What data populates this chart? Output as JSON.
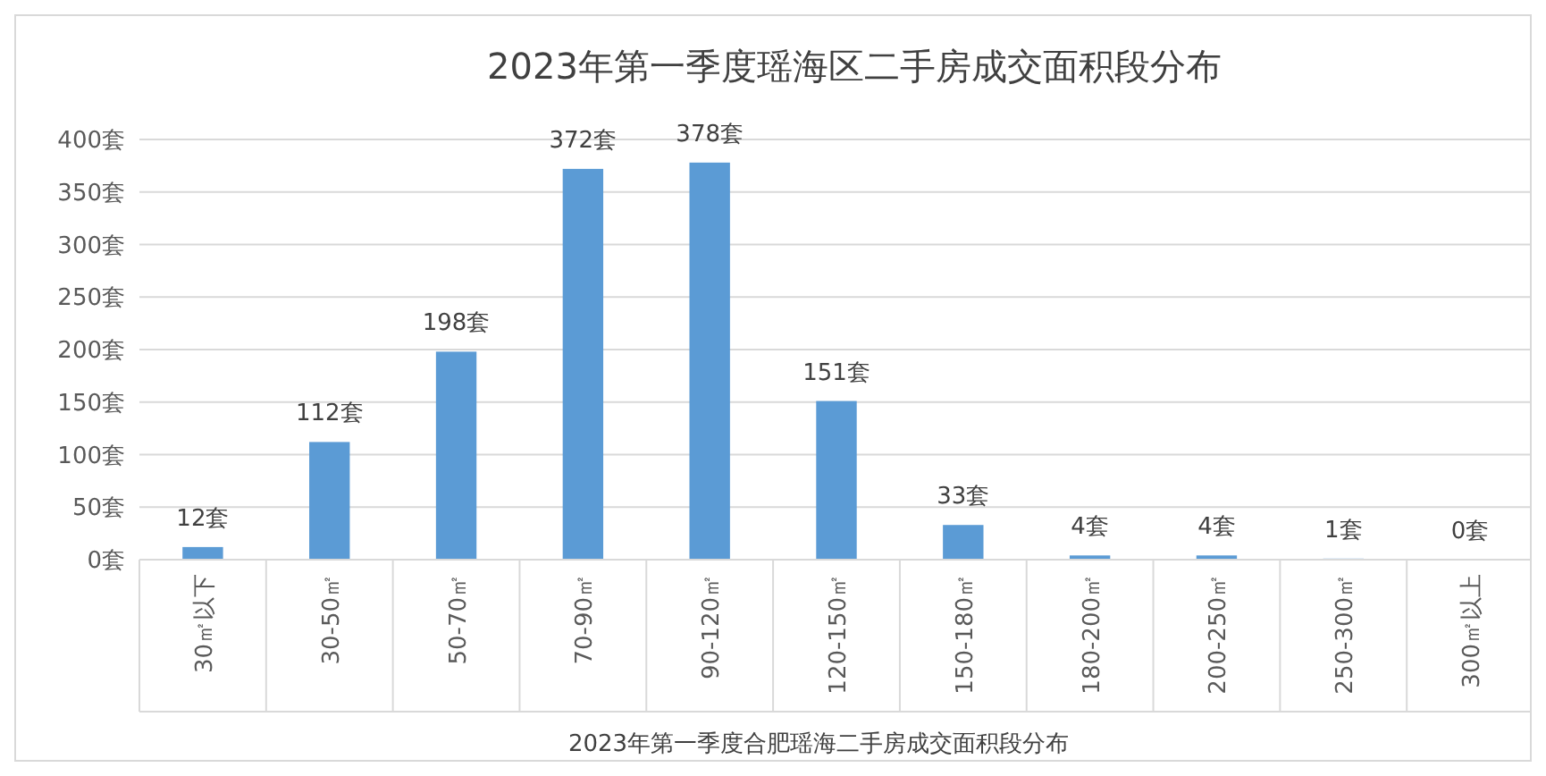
{
  "chart_data": {
    "type": "bar",
    "title": "2023年第一季度瑶海区二手房成交面积段分布",
    "xlabel": "2023年第一季度合肥瑶海二手房成交面积段分布",
    "categories": [
      "30㎡以下",
      "30-50㎡",
      "50-70㎡",
      "70-90㎡",
      "90-120㎡",
      "120-150㎡",
      "150-180㎡",
      "180-200㎡",
      "200-250㎡",
      "250-300㎡",
      "300㎡以上"
    ],
    "values": [
      12,
      112,
      198,
      372,
      378,
      151,
      33,
      4,
      4,
      1,
      0
    ],
    "value_labels": [
      "12套",
      "112套",
      "198套",
      "372套",
      "378套",
      "151套",
      "33套",
      "4套",
      "4套",
      "1套",
      "0套"
    ],
    "color": "#5b9bd5",
    "ylim": [
      0,
      400
    ],
    "yticks": [
      {
        "value": 0,
        "label": "0套"
      },
      {
        "value": 50,
        "label": "50套"
      },
      {
        "value": 100,
        "label": "100套"
      },
      {
        "value": 150,
        "label": "150套"
      },
      {
        "value": 200,
        "label": "200套"
      },
      {
        "value": 250,
        "label": "250套"
      },
      {
        "value": 300,
        "label": "300套"
      },
      {
        "value": 350,
        "label": "350套"
      },
      {
        "value": 400,
        "label": "400套"
      }
    ],
    "grid": "y"
  }
}
